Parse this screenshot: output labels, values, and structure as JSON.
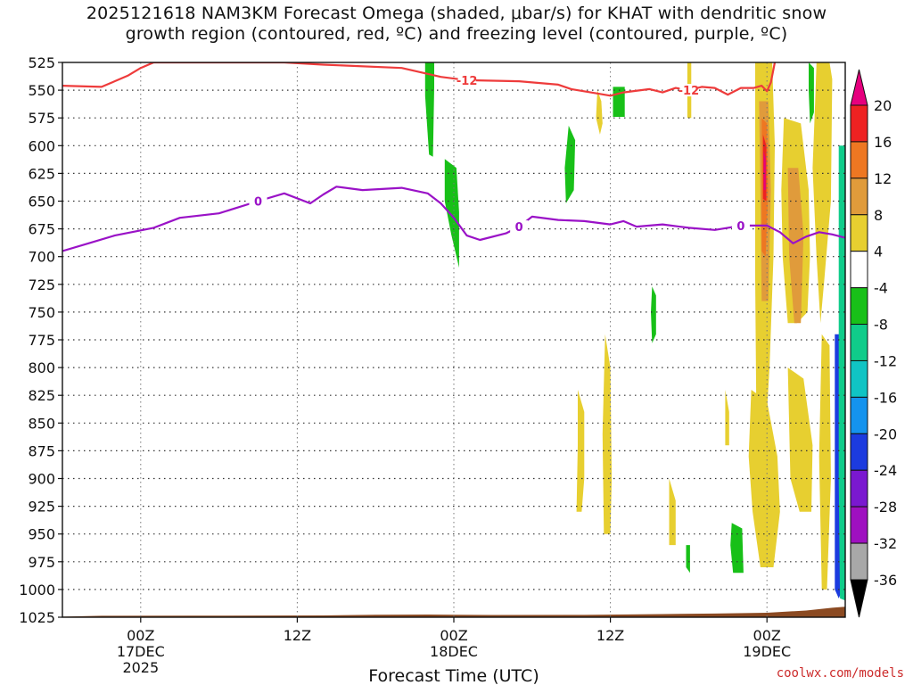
{
  "title": {
    "line1": "2025121618 NAM3KM Forecast Omega (shaded, μbar/s) for KHAT with dendritic snow",
    "line2": "growth region (contoured, red, ºC) and freezing level (contoured, purple, ºC)"
  },
  "credit": "coolwx.com/models",
  "colors": {
    "dgz_contour": "#ee3b3b",
    "freezing_contour": "#9a12c7",
    "terrain": "#8b4a22",
    "grid": "#333333"
  },
  "chart_data": {
    "type": "heatmap",
    "xlabel": "Forecast Time (UTC)",
    "ylabel": "",
    "x_range_hours": [
      0,
      60
    ],
    "y_ticks_mb": [
      525,
      550,
      575,
      600,
      625,
      650,
      675,
      700,
      725,
      750,
      775,
      800,
      825,
      850,
      875,
      900,
      925,
      950,
      975,
      1000,
      1025
    ],
    "y_range_mb": [
      525,
      1025
    ],
    "x_ticks": [
      {
        "hour": 6,
        "lines": [
          "00Z",
          "17DEC",
          "2025"
        ]
      },
      {
        "hour": 18,
        "lines": [
          "12Z"
        ]
      },
      {
        "hour": 30,
        "lines": [
          "00Z",
          "18DEC"
        ]
      },
      {
        "hour": 42,
        "lines": [
          "12Z"
        ]
      },
      {
        "hour": 54,
        "lines": [
          "00Z",
          "19DEC"
        ]
      }
    ],
    "colorbar": {
      "ticks": [
        "20",
        "16",
        "12",
        "8",
        "4",
        "-4",
        "-8",
        "-12",
        "-16",
        "-20",
        "-24",
        "-28",
        "-32",
        "-36"
      ],
      "colors": [
        "#e6007e",
        "#ee2222",
        "#ee7722",
        "#e09b3b",
        "#e7cf30",
        "#ffffff",
        "#18c018",
        "#10cc8a",
        "#10c4c4",
        "#1493ee",
        "#1c3bdf",
        "#7a18d0",
        "#9f10c0",
        "#a8a8a8"
      ]
    },
    "grid": true,
    "contours": [
      {
        "name": "-12",
        "color": "#ee3b3b",
        "points": [
          [
            0,
            546
          ],
          [
            3,
            547
          ],
          [
            5,
            537
          ],
          [
            6,
            530
          ],
          [
            7,
            525
          ],
          [
            17,
            525
          ],
          [
            20,
            527
          ],
          [
            26,
            530
          ],
          [
            29,
            538
          ],
          [
            31,
            541
          ],
          [
            35,
            542
          ],
          [
            38,
            545
          ],
          [
            39,
            549
          ],
          [
            41,
            553
          ],
          [
            42,
            555
          ],
          [
            43,
            552
          ],
          [
            45,
            549
          ],
          [
            46,
            552
          ],
          [
            47,
            548
          ],
          [
            48,
            550
          ],
          [
            49,
            547
          ],
          [
            50,
            548
          ],
          [
            51,
            554
          ],
          [
            52,
            548
          ],
          [
            53,
            548
          ],
          [
            53.6,
            546
          ],
          [
            54,
            551
          ],
          [
            54.3,
            543
          ],
          [
            54.6,
            525
          ]
        ]
      },
      {
        "name": "0",
        "color": "#9a12c7",
        "points": [
          [
            0,
            695
          ],
          [
            2,
            688
          ],
          [
            4,
            681
          ],
          [
            7,
            674
          ],
          [
            9,
            665
          ],
          [
            12,
            661
          ],
          [
            15,
            650
          ],
          [
            17,
            643
          ],
          [
            19,
            652
          ],
          [
            20,
            644
          ],
          [
            21,
            637
          ],
          [
            23,
            640
          ],
          [
            26,
            638
          ],
          [
            28,
            643
          ],
          [
            29,
            652
          ],
          [
            30,
            665
          ],
          [
            31,
            681
          ],
          [
            32,
            685
          ],
          [
            34,
            679
          ],
          [
            35,
            673
          ],
          [
            36,
            664
          ],
          [
            38,
            667
          ],
          [
            40,
            668
          ],
          [
            42,
            671
          ],
          [
            43,
            668
          ],
          [
            44,
            673
          ],
          [
            46,
            671
          ],
          [
            48,
            674
          ],
          [
            50,
            676
          ],
          [
            51,
            674
          ],
          [
            52,
            672
          ],
          [
            54,
            672
          ],
          [
            55,
            678
          ],
          [
            56,
            688
          ],
          [
            57,
            682
          ],
          [
            58,
            678
          ],
          [
            59,
            680
          ],
          [
            60,
            683
          ]
        ]
      }
    ],
    "shaded_regions": [
      {
        "color": "#18c018",
        "value": -8,
        "points": [
          [
            27.8,
            525
          ],
          [
            28.5,
            525
          ],
          [
            28.5,
            548
          ],
          [
            28.4,
            610
          ],
          [
            28.1,
            608
          ],
          [
            27.8,
            555
          ]
        ]
      },
      {
        "color": "#18c018",
        "value": -8,
        "points": [
          [
            29.3,
            612
          ],
          [
            30.2,
            620
          ],
          [
            30.4,
            660
          ],
          [
            30.4,
            710
          ],
          [
            29.8,
            680
          ],
          [
            29.3,
            650
          ]
        ]
      },
      {
        "color": "#18c018",
        "value": -8,
        "points": [
          [
            38.8,
            582
          ],
          [
            39.3,
            595
          ],
          [
            39.2,
            640
          ],
          [
            38.6,
            652
          ],
          [
            38.5,
            620
          ]
        ]
      },
      {
        "color": "#18c018",
        "value": -8,
        "points": [
          [
            42.2,
            547
          ],
          [
            43.1,
            547
          ],
          [
            43.1,
            574
          ],
          [
            42.2,
            574
          ]
        ]
      },
      {
        "color": "#18c018",
        "value": -8,
        "points": [
          [
            45.2,
            727
          ],
          [
            45.5,
            735
          ],
          [
            45.5,
            770
          ],
          [
            45.2,
            778
          ],
          [
            45.1,
            750
          ]
        ]
      },
      {
        "color": "#18c018",
        "value": -8,
        "points": [
          [
            47.8,
            960
          ],
          [
            48.1,
            960
          ],
          [
            48.1,
            985
          ],
          [
            47.8,
            980
          ]
        ]
      },
      {
        "color": "#18c018",
        "value": -8,
        "points": [
          [
            51.3,
            940
          ],
          [
            52.1,
            945
          ],
          [
            52.2,
            985
          ],
          [
            51.4,
            985
          ],
          [
            51.2,
            960
          ]
        ]
      },
      {
        "color": "#18c018",
        "value": -8,
        "points": [
          [
            57.2,
            525
          ],
          [
            57.6,
            530
          ],
          [
            57.6,
            570
          ],
          [
            57.3,
            580
          ],
          [
            57.2,
            550
          ]
        ]
      },
      {
        "color": "#e7cf30",
        "value": 4,
        "points": [
          [
            41.0,
            550
          ],
          [
            41.3,
            560
          ],
          [
            41.4,
            580
          ],
          [
            41.2,
            590
          ],
          [
            40.9,
            575
          ]
        ]
      },
      {
        "color": "#e7cf30",
        "value": 4,
        "points": [
          [
            47.9,
            525
          ],
          [
            48.2,
            525
          ],
          [
            48.2,
            575
          ],
          [
            47.9,
            575
          ]
        ]
      },
      {
        "color": "#e7cf30",
        "value": 4,
        "points": [
          [
            53.1,
            525
          ],
          [
            54.4,
            525
          ],
          [
            54.6,
            600
          ],
          [
            54.5,
            700
          ],
          [
            54.2,
            800
          ],
          [
            53.9,
            860
          ],
          [
            53.2,
            860
          ],
          [
            53.1,
            720
          ]
        ]
      },
      {
        "color": "#e7cf30",
        "value": 4,
        "points": [
          [
            55.3,
            575
          ],
          [
            56.6,
            580
          ],
          [
            57.2,
            640
          ],
          [
            57.3,
            700
          ],
          [
            57.1,
            750
          ],
          [
            56.3,
            760
          ],
          [
            55.6,
            760
          ],
          [
            55.2,
            700
          ],
          [
            55.1,
            640
          ]
        ]
      },
      {
        "color": "#e7cf30",
        "value": 4,
        "points": [
          [
            57.8,
            525
          ],
          [
            58.8,
            525
          ],
          [
            59.0,
            540
          ],
          [
            58.9,
            650
          ],
          [
            58.4,
            720
          ],
          [
            58.1,
            760
          ],
          [
            57.8,
            700
          ],
          [
            57.5,
            620
          ],
          [
            57.7,
            560
          ]
        ]
      },
      {
        "color": "#e7cf30",
        "value": 4,
        "points": [
          [
            39.5,
            820
          ],
          [
            40.0,
            840
          ],
          [
            40.0,
            900
          ],
          [
            39.8,
            930
          ],
          [
            39.4,
            930
          ],
          [
            39.5,
            870
          ]
        ]
      },
      {
        "color": "#e7cf30",
        "value": 4,
        "points": [
          [
            41.6,
            770
          ],
          [
            42.0,
            800
          ],
          [
            42.1,
            900
          ],
          [
            42.0,
            950
          ],
          [
            41.5,
            950
          ],
          [
            41.4,
            860
          ]
        ]
      },
      {
        "color": "#e7cf30",
        "value": 4,
        "points": [
          [
            46.5,
            900
          ],
          [
            47.0,
            920
          ],
          [
            47.0,
            960
          ],
          [
            46.5,
            960
          ]
        ]
      },
      {
        "color": "#e7cf30",
        "value": 4,
        "points": [
          [
            50.8,
            820
          ],
          [
            51.1,
            840
          ],
          [
            51.1,
            870
          ],
          [
            50.8,
            870
          ]
        ]
      },
      {
        "color": "#e7cf30",
        "value": 4,
        "points": [
          [
            52.8,
            820
          ],
          [
            54.0,
            830
          ],
          [
            54.8,
            880
          ],
          [
            55.0,
            930
          ],
          [
            54.5,
            980
          ],
          [
            53.5,
            980
          ],
          [
            52.9,
            930
          ],
          [
            52.6,
            880
          ]
        ]
      },
      {
        "color": "#e7cf30",
        "value": 4,
        "points": [
          [
            55.6,
            800
          ],
          [
            56.8,
            810
          ],
          [
            57.5,
            870
          ],
          [
            57.4,
            930
          ],
          [
            56.5,
            930
          ],
          [
            55.8,
            900
          ]
        ]
      },
      {
        "color": "#e7cf30",
        "value": 4,
        "points": [
          [
            58.2,
            770
          ],
          [
            58.8,
            780
          ],
          [
            58.9,
            900
          ],
          [
            58.6,
            1000
          ],
          [
            58.2,
            1000
          ],
          [
            58.0,
            880
          ]
        ]
      },
      {
        "color": "#e09b3b",
        "value": 8,
        "points": [
          [
            53.4,
            560
          ],
          [
            54.1,
            560
          ],
          [
            54.3,
            640
          ],
          [
            54.1,
            740
          ],
          [
            53.6,
            740
          ],
          [
            53.5,
            650
          ]
        ]
      },
      {
        "color": "#e09b3b",
        "value": 8,
        "points": [
          [
            55.6,
            620
          ],
          [
            56.4,
            620
          ],
          [
            56.8,
            680
          ],
          [
            56.6,
            760
          ],
          [
            56.1,
            760
          ],
          [
            55.7,
            700
          ]
        ]
      },
      {
        "color": "#ee7722",
        "value": 12,
        "points": [
          [
            53.6,
            575
          ],
          [
            54.0,
            580
          ],
          [
            54.1,
            640
          ],
          [
            53.9,
            700
          ],
          [
            53.6,
            695
          ]
        ]
      },
      {
        "color": "#ee2222",
        "value": 16,
        "points": [
          [
            53.7,
            590
          ],
          [
            53.95,
            600
          ],
          [
            53.95,
            650
          ],
          [
            53.7,
            648
          ]
        ]
      },
      {
        "color": "#e6007e",
        "value": 20,
        "points": [
          [
            53.75,
            605
          ],
          [
            53.9,
            612
          ],
          [
            53.9,
            640
          ],
          [
            53.75,
            640
          ]
        ]
      },
      {
        "color": "#1c3bdf",
        "value": -24,
        "points": [
          [
            59.2,
            770
          ],
          [
            59.7,
            770
          ],
          [
            59.8,
            1000
          ],
          [
            59.5,
            1008
          ],
          [
            59.2,
            1000
          ]
        ]
      },
      {
        "color": "#10cc8a",
        "value": -12,
        "points": [
          [
            59.5,
            600
          ],
          [
            60.0,
            600
          ],
          [
            60.0,
            1010
          ],
          [
            59.6,
            1008
          ],
          [
            59.5,
            900
          ]
        ]
      }
    ],
    "terrain_mb": [
      [
        0,
        1024.5
      ],
      [
        3,
        1023.7
      ],
      [
        10,
        1023.6
      ],
      [
        20,
        1023.4
      ],
      [
        24,
        1022.8
      ],
      [
        28,
        1022.6
      ],
      [
        33,
        1023.0
      ],
      [
        40,
        1022.9
      ],
      [
        46,
        1022.2
      ],
      [
        50,
        1021.7
      ],
      [
        54,
        1021.0
      ],
      [
        57,
        1019.0
      ],
      [
        59,
        1016.5
      ],
      [
        60,
        1015.5
      ]
    ]
  }
}
